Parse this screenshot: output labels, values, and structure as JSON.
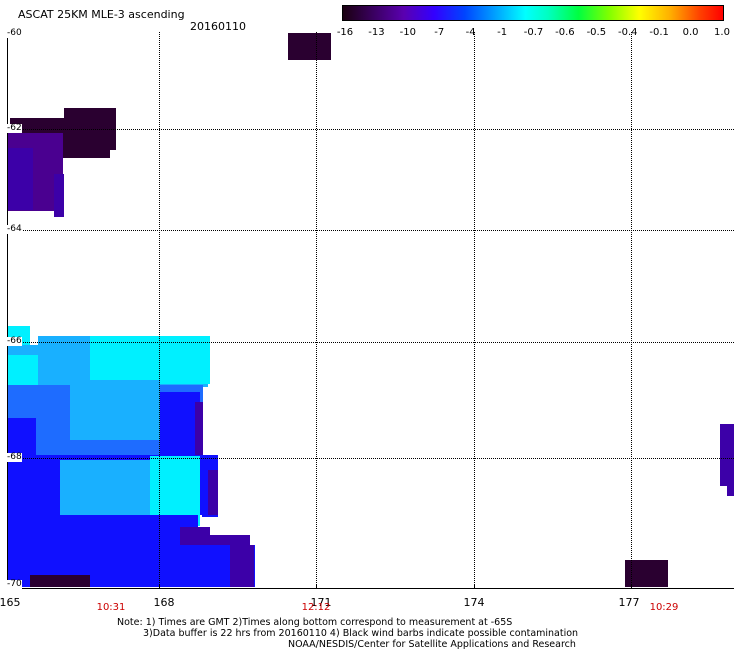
{
  "title": "ASCAT 25KM MLE-3 ascending",
  "date": "20160110",
  "colorbar": {
    "labels": [
      "-16",
      "-13",
      "-10",
      "-7",
      "-4",
      "-1",
      "-0.7",
      "-0.6",
      "-0.5",
      "-0.4",
      "-0.1",
      "0.0",
      "1.0"
    ]
  },
  "map": {
    "lat_labels": [
      "-60",
      "-62",
      "-64",
      "-66",
      "-68",
      "-70"
    ],
    "lon_labels": [
      "165",
      "168",
      "171",
      "174",
      "177"
    ],
    "time_labels": [
      "10:31",
      "12:12",
      "10:29"
    ]
  },
  "notes": [
    "Note: 1) Times are GMT 2)Times along bottom correspond to measurement at -65S",
    "3)Data buffer is 22 hrs from 20160110 4) Black wind barbs indicate possible contamination",
    "NOAA/NESDIS/Center for Satellite Applications and Research"
  ],
  "colors": {
    "dark": "#2a0030",
    "purple": "#4a0090",
    "violet": "#3c00a8",
    "blue": "#1010ff",
    "midblue": "#1e6cff",
    "lightblue": "#19b0ff",
    "cyan": "#00f0ff",
    "title_time": "#cc0000"
  }
}
